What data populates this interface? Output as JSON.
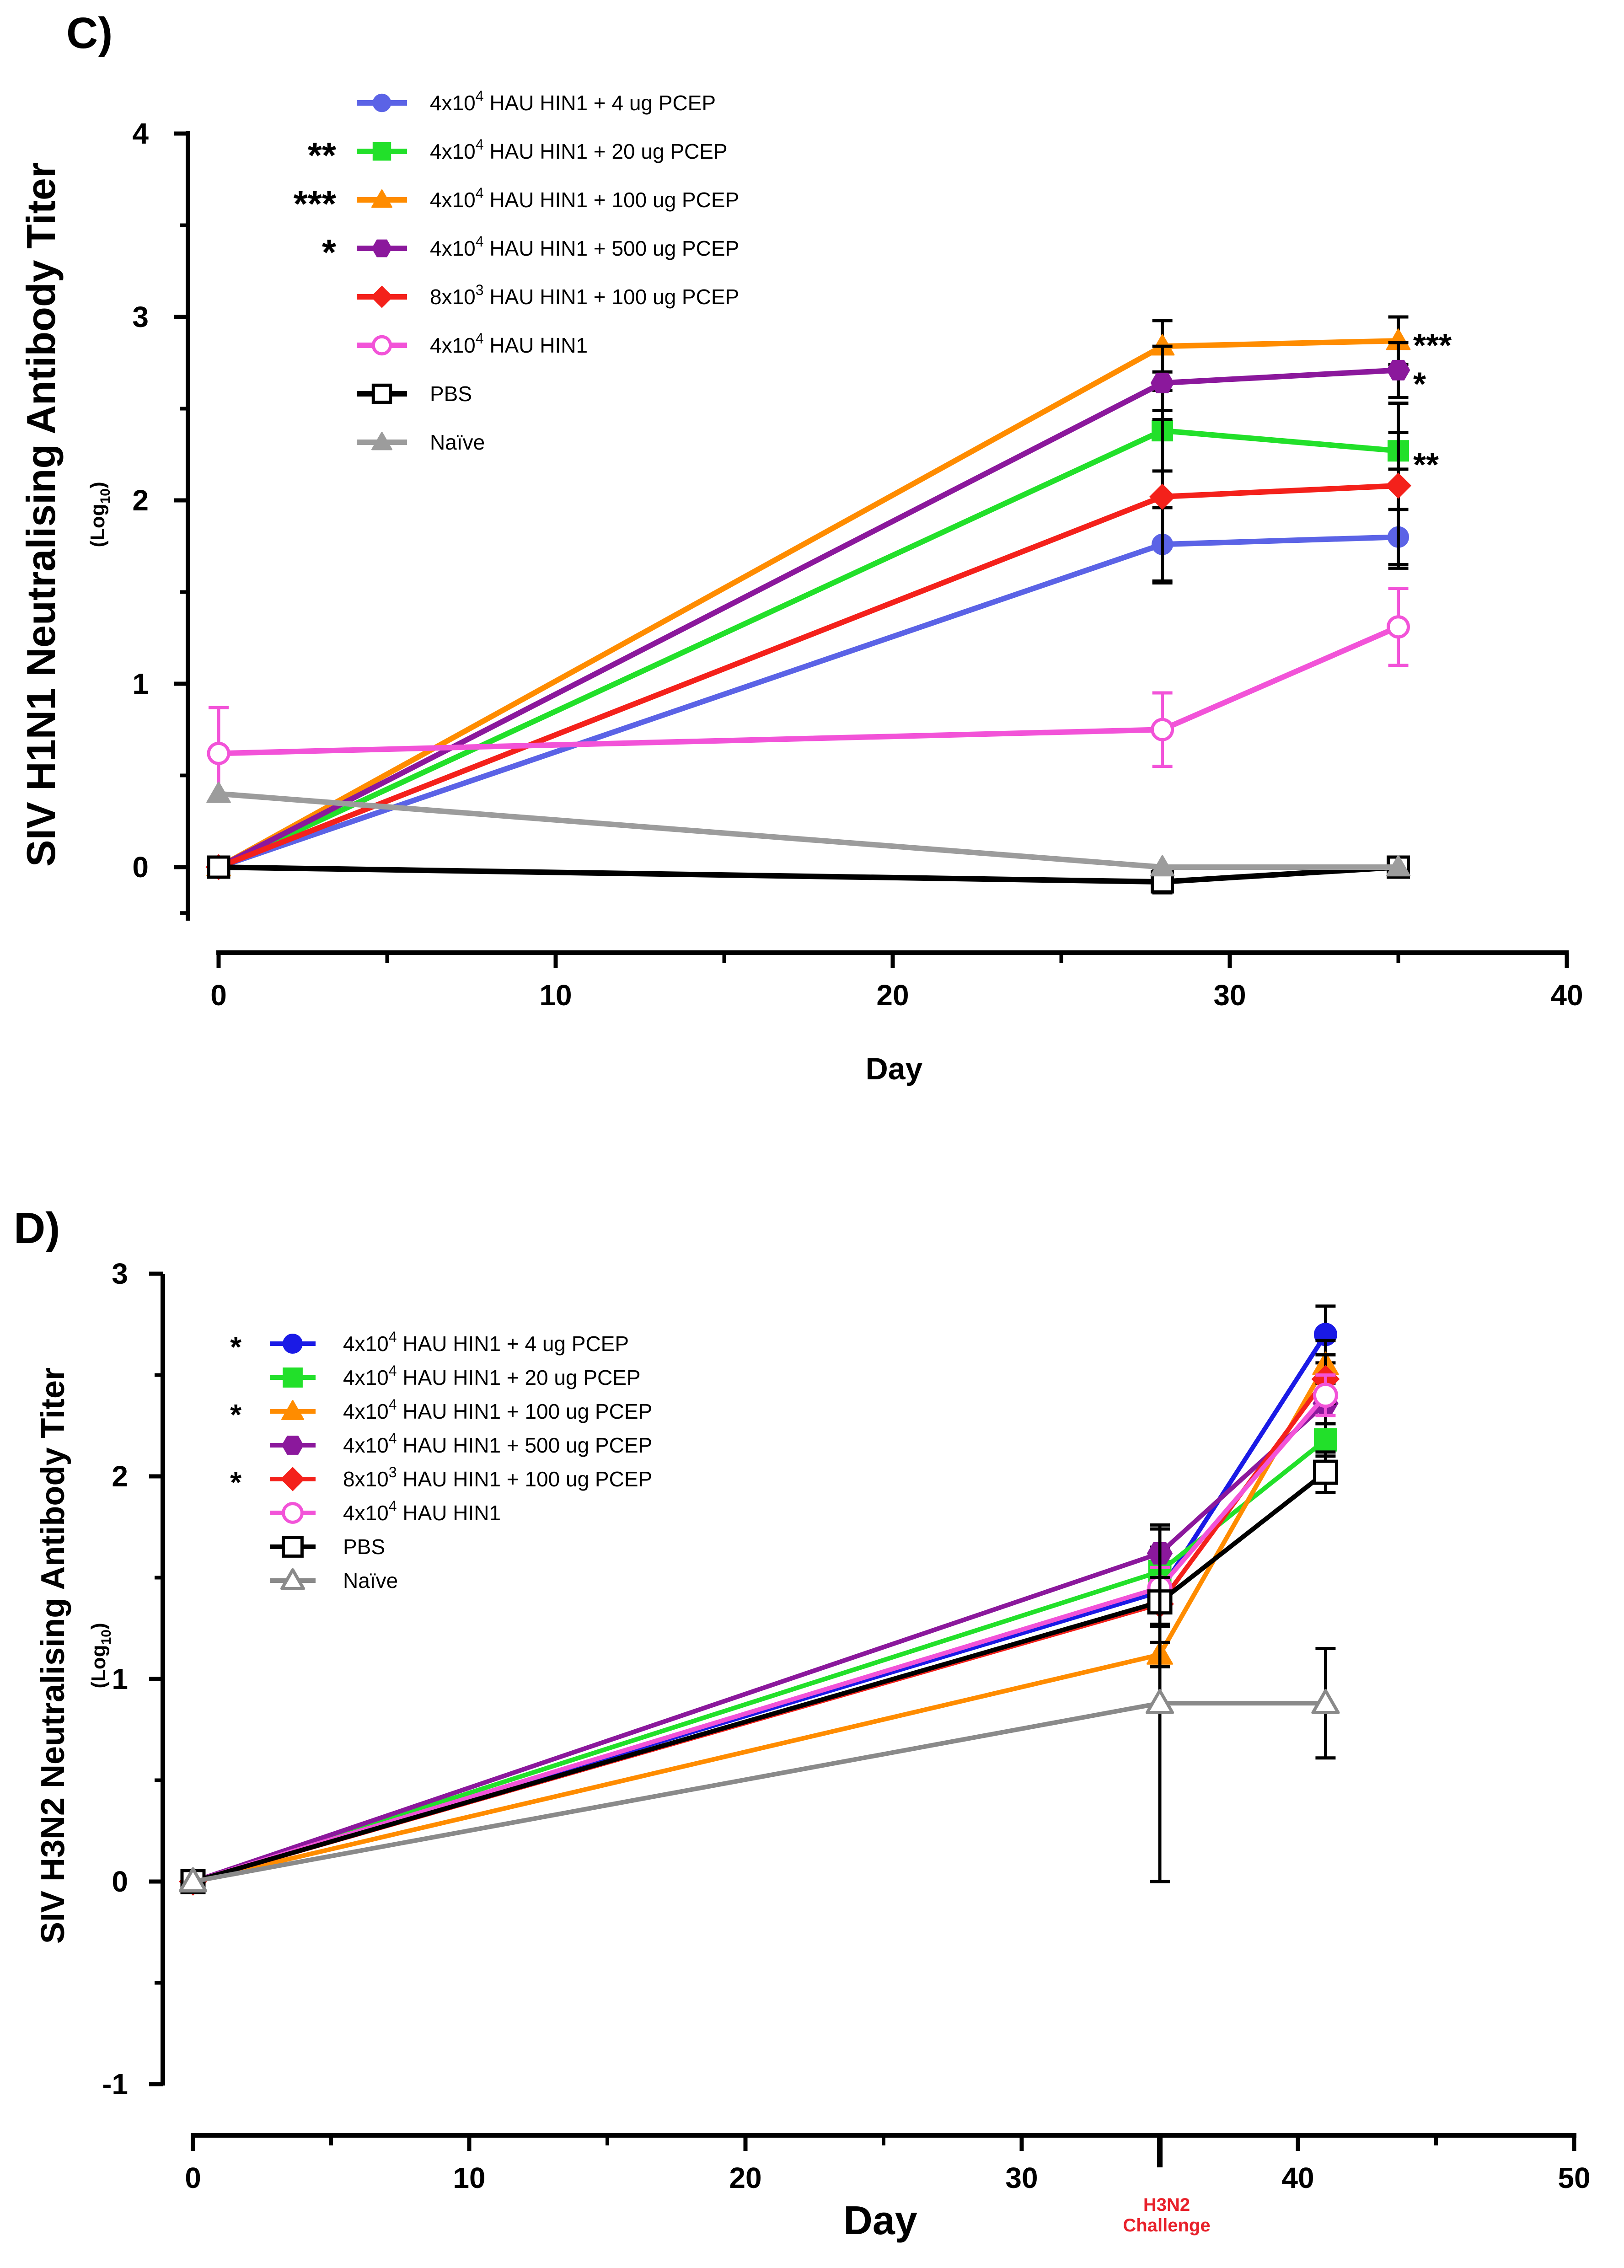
{
  "chart_data": [
    {
      "panel": "C)",
      "type": "line",
      "xlabel": "Day",
      "ylabel": "SIV H1N1 Neutralising Antibody Titer",
      "ylabel_sub": "(Log10)",
      "xlim": [
        0,
        40
      ],
      "ylim": [
        -0.3,
        4
      ],
      "x_ticks": [
        0,
        10,
        20,
        30,
        40
      ],
      "y_ticks": [
        0,
        1,
        2,
        3,
        4
      ],
      "legend_position": "top-left",
      "legend_stars": [
        "",
        "**",
        "***",
        "*",
        "",
        "",
        "",
        ""
      ],
      "series": [
        {
          "name": "4x10^4 HAU HIN1 + 4 ug PCEP",
          "label_main": "4x10",
          "label_sup": "4",
          "label_rest": " HAU HIN1 + 4 ug PCEP",
          "color": "#5b63e6",
          "marker": "circle",
          "filled": true,
          "x": [
            0,
            28,
            35
          ],
          "y": [
            0,
            1.76,
            1.8
          ],
          "err": [
            0,
            0.2,
            0.15
          ]
        },
        {
          "name": "4x10^4 HAU HIN1 + 20 ug PCEP",
          "label_main": "4x10",
          "label_sup": "4",
          "label_rest": " HAU HIN1 + 20 ug PCEP",
          "color": "#22e02a",
          "marker": "square",
          "filled": true,
          "x": [
            0,
            28,
            35
          ],
          "y": [
            0,
            2.38,
            2.27
          ],
          "err": [
            0,
            0.22,
            0.1
          ]
        },
        {
          "name": "4x10^4 HAU HIN1 + 100 ug PCEP",
          "label_main": "4x10",
          "label_sup": "4",
          "label_rest": " HAU HIN1 + 100 ug PCEP",
          "color": "#ff8c00",
          "marker": "triangle",
          "filled": true,
          "x": [
            0,
            28,
            35
          ],
          "y": [
            0,
            2.84,
            2.87
          ],
          "err": [
            0,
            0.14,
            0.13
          ]
        },
        {
          "name": "4x10^4 HAU HIN1 + 500 ug PCEP",
          "label_main": "4x10",
          "label_sup": "4",
          "label_rest": " HAU HIN1 + 500 ug PCEP",
          "color": "#8b189c",
          "marker": "hexagon",
          "filled": true,
          "x": [
            0,
            28,
            35
          ],
          "y": [
            0,
            2.64,
            2.71
          ],
          "err": [
            0,
            0.2,
            0.15
          ]
        },
        {
          "name": "8x10^3 HAU HIN1 + 100 ug PCEP",
          "label_main": "8x10",
          "label_sup": "3",
          "label_rest": " HAU HIN1 + 100 ug PCEP",
          "color": "#f4211b",
          "marker": "diamond",
          "filled": true,
          "x": [
            0,
            28,
            35
          ],
          "y": [
            0,
            2.02,
            2.08
          ],
          "err": [
            0,
            0.47,
            0.45
          ]
        },
        {
          "name": "4x10^4 HAU HIN1",
          "label_main": "4x10",
          "label_sup": "4",
          "label_rest": " HAU HIN1",
          "color": "#f253d8",
          "marker": "circle",
          "filled": false,
          "x": [
            0,
            28,
            35
          ],
          "y": [
            0.62,
            0.75,
            1.31
          ],
          "err": [
            0.25,
            0.2,
            0.21
          ]
        },
        {
          "name": "PBS",
          "label_main": "PBS",
          "label_sup": "",
          "label_rest": "",
          "color": "#000000",
          "marker": "square",
          "filled": false,
          "x": [
            0,
            28,
            35
          ],
          "y": [
            0,
            -0.08,
            0
          ],
          "err": [
            0,
            0.06,
            0
          ]
        },
        {
          "name": "Naïve",
          "label_main": "Naïve",
          "label_sup": "",
          "label_rest": "",
          "color": "#9c9c9c",
          "marker": "triangle",
          "filled": true,
          "x": [
            0,
            28,
            35
          ],
          "y": [
            0.4,
            0,
            0
          ],
          "err": [
            0,
            0,
            0
          ]
        }
      ],
      "annotations": [
        {
          "text": "***",
          "x": 35,
          "y": 2.87
        },
        {
          "text": "*",
          "x": 35,
          "y": 2.66
        },
        {
          "text": "**",
          "x": 35,
          "y": 2.22
        }
      ]
    },
    {
      "panel": "D)",
      "type": "line",
      "xlabel": "Day",
      "ylabel": "SIV H3N2 Neutralising Antibody Titer",
      "ylabel_sub": "(Log10)",
      "xlim": [
        0,
        50
      ],
      "ylim": [
        -1,
        3
      ],
      "x_ticks": [
        0,
        10,
        20,
        30,
        40,
        50
      ],
      "y_ticks": [
        -1,
        0,
        1,
        2,
        3
      ],
      "legend_position": "top-left",
      "legend_stars": [
        "*",
        "",
        "*",
        "",
        "*",
        "",
        "",
        ""
      ],
      "x_annotation": {
        "x": 35,
        "text_line1": "H3N2",
        "text_line2": "Challenge",
        "color": "#e8202a"
      },
      "series": [
        {
          "name": "4x10^4 HAU HIN1 + 4 ug PCEP",
          "label_main": "4x10",
          "label_sup": "4",
          "label_rest": " HAU HIN1 + 4 ug PCEP",
          "color": "#1a1ae6",
          "marker": "circle",
          "filled": true,
          "x": [
            0,
            35,
            41
          ],
          "y": [
            0,
            1.43,
            2.7
          ],
          "err": [
            0,
            0.1,
            0.14
          ]
        },
        {
          "name": "4x10^4 HAU HIN1 + 20 ug PCEP",
          "label_main": "4x10",
          "label_sup": "4",
          "label_rest": " HAU HIN1 + 20 ug PCEP",
          "color": "#22e02a",
          "marker": "square",
          "filled": true,
          "x": [
            0,
            35,
            41
          ],
          "y": [
            0,
            1.53,
            2.18
          ],
          "err": [
            0,
            0.12,
            0.08
          ]
        },
        {
          "name": "4x10^4 HAU HIN1 + 100 ug PCEP",
          "label_main": "4x10",
          "label_sup": "4",
          "label_rest": " HAU HIN1 + 100 ug PCEP",
          "color": "#ff8c00",
          "marker": "triangle",
          "filled": true,
          "x": [
            0,
            35,
            41
          ],
          "y": [
            0,
            1.12,
            2.55
          ],
          "err": [
            0,
            0.06,
            0.12
          ]
        },
        {
          "name": "4x10^4 HAU HIN1 + 500 ug PCEP",
          "label_main": "4x10",
          "label_sup": "4",
          "label_rest": " HAU HIN1 + 500 ug PCEP",
          "color": "#8b189c",
          "marker": "hexagon",
          "filled": true,
          "x": [
            0,
            35,
            41
          ],
          "y": [
            0,
            1.62,
            2.36
          ],
          "err": [
            0,
            0.12,
            0.1
          ]
        },
        {
          "name": "8x10^3 HAU HIN1 + 100 ug PCEP",
          "label_main": "8x10",
          "label_sup": "3",
          "label_rest": " HAU HIN1 + 100 ug PCEP",
          "color": "#f4211b",
          "marker": "diamond",
          "filled": true,
          "x": [
            0,
            35,
            41
          ],
          "y": [
            0,
            1.37,
            2.48
          ],
          "err": [
            0,
            0.1,
            0.12
          ]
        },
        {
          "name": "4x10^4 HAU HIN1",
          "label_main": "4x10",
          "label_sup": "4",
          "label_rest": " HAU HIN1",
          "color": "#f253d8",
          "marker": "circle",
          "filled": false,
          "x": [
            0,
            35,
            41
          ],
          "y": [
            0,
            1.45,
            2.4
          ],
          "err": [
            0,
            0.1,
            0.1
          ]
        },
        {
          "name": "PBS",
          "label_main": "PBS",
          "label_sup": "",
          "label_rest": "",
          "color": "#000000",
          "marker": "square",
          "filled": false,
          "x": [
            0,
            35,
            41
          ],
          "y": [
            0,
            1.38,
            2.02
          ],
          "err": [
            0,
            0.12,
            0.1
          ]
        },
        {
          "name": "Naïve",
          "label_main": "Naïve",
          "label_sup": "",
          "label_rest": "",
          "color": "#8a8a8a",
          "marker": "triangle",
          "filled": false,
          "x": [
            0,
            35,
            41
          ],
          "y": [
            0,
            0.88,
            0.88
          ],
          "err": [
            0,
            0.88,
            0.27
          ]
        }
      ]
    }
  ]
}
